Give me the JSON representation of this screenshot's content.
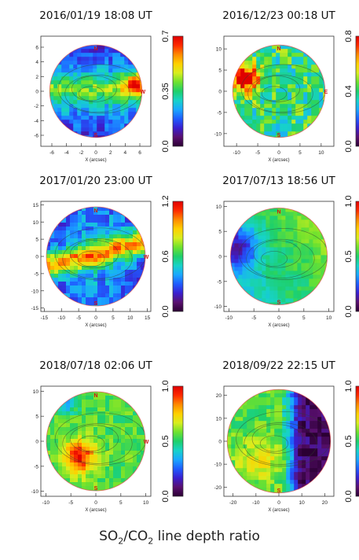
{
  "caption": {
    "part1": "SO",
    "sub1": "2",
    "part2": "/CO",
    "sub2": "2",
    "part3": " line depth ratio"
  },
  "colors": {
    "colormap": [
      "#2b0033",
      "#5a1070",
      "#3a1fd0",
      "#1f5cff",
      "#1aa8ff",
      "#17d3c8",
      "#1ed06a",
      "#6fe22e",
      "#d8ee1e",
      "#ffd000",
      "#ff8a00",
      "#ff2a00",
      "#e00000"
    ],
    "disk_outline": "#e05050",
    "cardinal_labels": "#d01010",
    "contours": "#304030"
  },
  "chart_data": [
    {
      "type": "heatmap",
      "title": "2016/01/19  18:08 UT",
      "xlabel": "X (arcsec)",
      "xticks": [
        "-6",
        "-4",
        "-2",
        "0",
        "2",
        "4",
        "6"
      ],
      "yticks": [
        "-6",
        "-4",
        "-2",
        "0",
        "2",
        "4",
        "6"
      ],
      "xlim": [
        -7.5,
        7.5
      ],
      "ylim": [
        -7.5,
        7.5
      ],
      "colorbar": {
        "min": 0,
        "max": 0.7,
        "ticks": [
          "0.0",
          "0.35",
          "0.7"
        ]
      },
      "cardinal": [
        "N",
        "S",
        "W"
      ],
      "pattern": "bands",
      "radius_frac": 0.42
    },
    {
      "type": "heatmap",
      "title": "2016/12/23  00:18 UT",
      "xlabel": "X (arcsec)",
      "xticks": [
        "-10",
        "-5",
        "0",
        "5",
        "10"
      ],
      "yticks": [
        "-10",
        "-5",
        "0",
        "5",
        "10"
      ],
      "xlim": [
        -13,
        13
      ],
      "ylim": [
        -13,
        13
      ],
      "colorbar": {
        "min": 0,
        "max": 0.8,
        "ticks": [
          "0.0",
          "0.4",
          "0.8"
        ]
      },
      "cardinal": [
        "N",
        "S",
        "E"
      ],
      "pattern": "redwest",
      "radius_frac": 0.42
    },
    {
      "type": "heatmap",
      "title": "2017/01/20  23:00 UT",
      "xlabel": "X (arcsec)",
      "xticks": [
        "-15",
        "-10",
        "-5",
        "0",
        "5",
        "10",
        "15"
      ],
      "yticks": [
        "-15",
        "-10",
        "-5",
        "0",
        "5",
        "10",
        "15"
      ],
      "xlim": [
        -16,
        16
      ],
      "ylim": [
        -16,
        16
      ],
      "colorbar": {
        "min": 0,
        "max": 1.2,
        "ticks": [
          "0.0",
          "0.6",
          "1.2"
        ]
      },
      "cardinal": [
        "N",
        "S",
        "W"
      ],
      "pattern": "diagonal",
      "radius_frac": 0.45
    },
    {
      "type": "heatmap",
      "title": "2017/07/13  18:56 UT",
      "xlabel": "X (arcsec)",
      "xticks": [
        "-10",
        "-5",
        "0",
        "5",
        "10"
      ],
      "yticks": [
        "-10",
        "-5",
        "0",
        "5",
        "10"
      ],
      "xlim": [
        -11,
        11
      ],
      "ylim": [
        -11,
        11
      ],
      "colorbar": {
        "min": 0,
        "max": 1.0,
        "ticks": [
          "0.0",
          "0.5",
          "1.0"
        ]
      },
      "cardinal": [
        "N",
        "S"
      ],
      "pattern": "cyanwest",
      "radius_frac": 0.44
    },
    {
      "type": "heatmap",
      "title": "2018/07/18  02:06 UT",
      "xlabel": "X (arcsec)",
      "xticks": [
        "-10",
        "-5",
        "0",
        "5",
        "10"
      ],
      "yticks": [
        "-10",
        "-5",
        "0",
        "5",
        "10"
      ],
      "xlim": [
        -11,
        11
      ],
      "ylim": [
        -11,
        11
      ],
      "colorbar": {
        "min": 0,
        "max": 1.0,
        "ticks": [
          "0.0",
          "0.5",
          "1.0"
        ]
      },
      "cardinal": [
        "N",
        "S",
        "W"
      ],
      "pattern": "redcenter",
      "radius_frac": 0.45
    },
    {
      "type": "heatmap",
      "title": "2018/09/22  22:15 UT",
      "xlabel": "X (arcsec)",
      "xticks": [
        "-20",
        "-10",
        "0",
        "10",
        "20"
      ],
      "yticks": [
        "-20",
        "-10",
        "0",
        "10",
        "20"
      ],
      "xlim": [
        -24,
        24
      ],
      "ylim": [
        -24,
        24
      ],
      "colorbar": {
        "min": 0,
        "max": 1.0,
        "ticks": [
          "0.0",
          "0.5",
          "1.0"
        ]
      },
      "cardinal": [
        "S"
      ],
      "pattern": "crescent",
      "radius_frac": 0.47
    }
  ]
}
